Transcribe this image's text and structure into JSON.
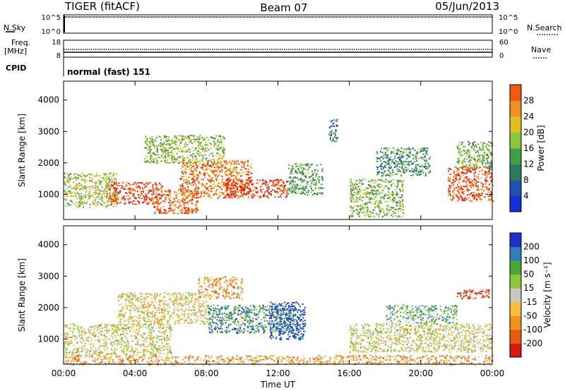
{
  "header": {
    "radar": "TIGER (fitACF)",
    "beam": "Beam 07",
    "date": "05/Jun/2013"
  },
  "strips": {
    "sky": {
      "label": "N.Sky",
      "top_tick": "10^5",
      "bottom_tick": "10^0",
      "right_label": "N.Search"
    },
    "freq": {
      "label_line1": "Freq.",
      "label_line2": "[MHz]",
      "top_tick": "18",
      "bottom_tick": "8",
      "right_top_tick": "60",
      "right_bottom_tick": "0",
      "right_label": "Nave"
    },
    "cpid": {
      "label": "CPID",
      "value": "normal (fast) 151"
    }
  },
  "chart_data": [
    {
      "type": "heatmap",
      "name": "power",
      "ylabel": "Slant Range [km]",
      "ylim": [
        200,
        4600
      ],
      "yticks": [
        1000,
        2000,
        3000,
        4000
      ],
      "xlim": [
        0,
        24
      ],
      "xticks": [
        "00:00",
        "04:00",
        "08:00",
        "12:00",
        "16:00",
        "20:00",
        "00:00"
      ],
      "colorbar": {
        "label": "Power [dB]",
        "range": [
          0,
          32
        ],
        "ticks": [
          4,
          8,
          12,
          16,
          20,
          24,
          28
        ]
      },
      "regions": [
        {
          "t0": 0.0,
          "t1": 3.0,
          "r0": 600,
          "r1": 1700,
          "level": 0.55
        },
        {
          "t0": 2.5,
          "t1": 5.5,
          "r0": 700,
          "r1": 1400,
          "level": 0.95
        },
        {
          "t0": 5.0,
          "t1": 7.5,
          "r0": 400,
          "r1": 1200,
          "level": 0.85
        },
        {
          "t0": 6.5,
          "t1": 10.5,
          "r0": 900,
          "r1": 2100,
          "level": 0.8
        },
        {
          "t0": 9.0,
          "t1": 12.5,
          "r0": 900,
          "r1": 1500,
          "level": 0.97
        },
        {
          "t0": 4.5,
          "t1": 9.0,
          "r0": 2000,
          "r1": 2900,
          "level": 0.5
        },
        {
          "t0": 12.5,
          "t1": 14.5,
          "r0": 1000,
          "r1": 2000,
          "level": 0.35
        },
        {
          "t0": 14.8,
          "t1": 15.3,
          "r0": 2700,
          "r1": 3400,
          "level": 0.2
        },
        {
          "t0": 16.0,
          "t1": 19.0,
          "r0": 300,
          "r1": 1500,
          "level": 0.45
        },
        {
          "t0": 17.5,
          "t1": 20.5,
          "r0": 1600,
          "r1": 2500,
          "level": 0.3
        },
        {
          "t0": 21.5,
          "t1": 24.0,
          "r0": 800,
          "r1": 1900,
          "level": 0.9
        },
        {
          "t0": 22.0,
          "t1": 24.0,
          "r0": 1800,
          "r1": 2700,
          "level": 0.45
        }
      ]
    },
    {
      "type": "heatmap",
      "name": "velocity",
      "ylabel": "Slant Range [km]",
      "ylim": [
        200,
        4600
      ],
      "yticks": [
        1000,
        2000,
        3000,
        4000
      ],
      "xlim": [
        0,
        24
      ],
      "xticks": [
        "00:00",
        "04:00",
        "08:00",
        "12:00",
        "16:00",
        "20:00",
        "00:00"
      ],
      "xlabel": "Time UT",
      "colorbar": {
        "label": "Velocity [m s⁻¹]",
        "ticks": [
          "200",
          "100",
          "50",
          "15",
          "-15",
          "-50",
          "-100",
          "-200"
        ]
      },
      "regions": [
        {
          "t0": 0.0,
          "t1": 6.0,
          "r0": 500,
          "r1": 1500,
          "level": 0.5
        },
        {
          "t0": 3.0,
          "t1": 8.0,
          "r0": 1500,
          "r1": 2500,
          "level": 0.45
        },
        {
          "t0": 8.0,
          "t1": 13.0,
          "r0": 1200,
          "r1": 2100,
          "level": 0.82
        },
        {
          "t0": 11.5,
          "t1": 13.5,
          "r0": 1000,
          "r1": 2200,
          "level": 0.97
        },
        {
          "t0": 7.5,
          "t1": 10.0,
          "r0": 2300,
          "r1": 3000,
          "level": 0.3
        },
        {
          "t0": 16.0,
          "t1": 24.0,
          "r0": 600,
          "r1": 1500,
          "level": 0.5
        },
        {
          "t0": 18.0,
          "t1": 22.0,
          "r0": 1500,
          "r1": 2100,
          "level": 0.7
        },
        {
          "t0": 22.0,
          "t1": 23.8,
          "r0": 2300,
          "r1": 2600,
          "level": 0.02
        },
        {
          "t0": 0.0,
          "t1": 24.0,
          "r0": 200,
          "r1": 500,
          "level": 0.3
        }
      ]
    }
  ]
}
